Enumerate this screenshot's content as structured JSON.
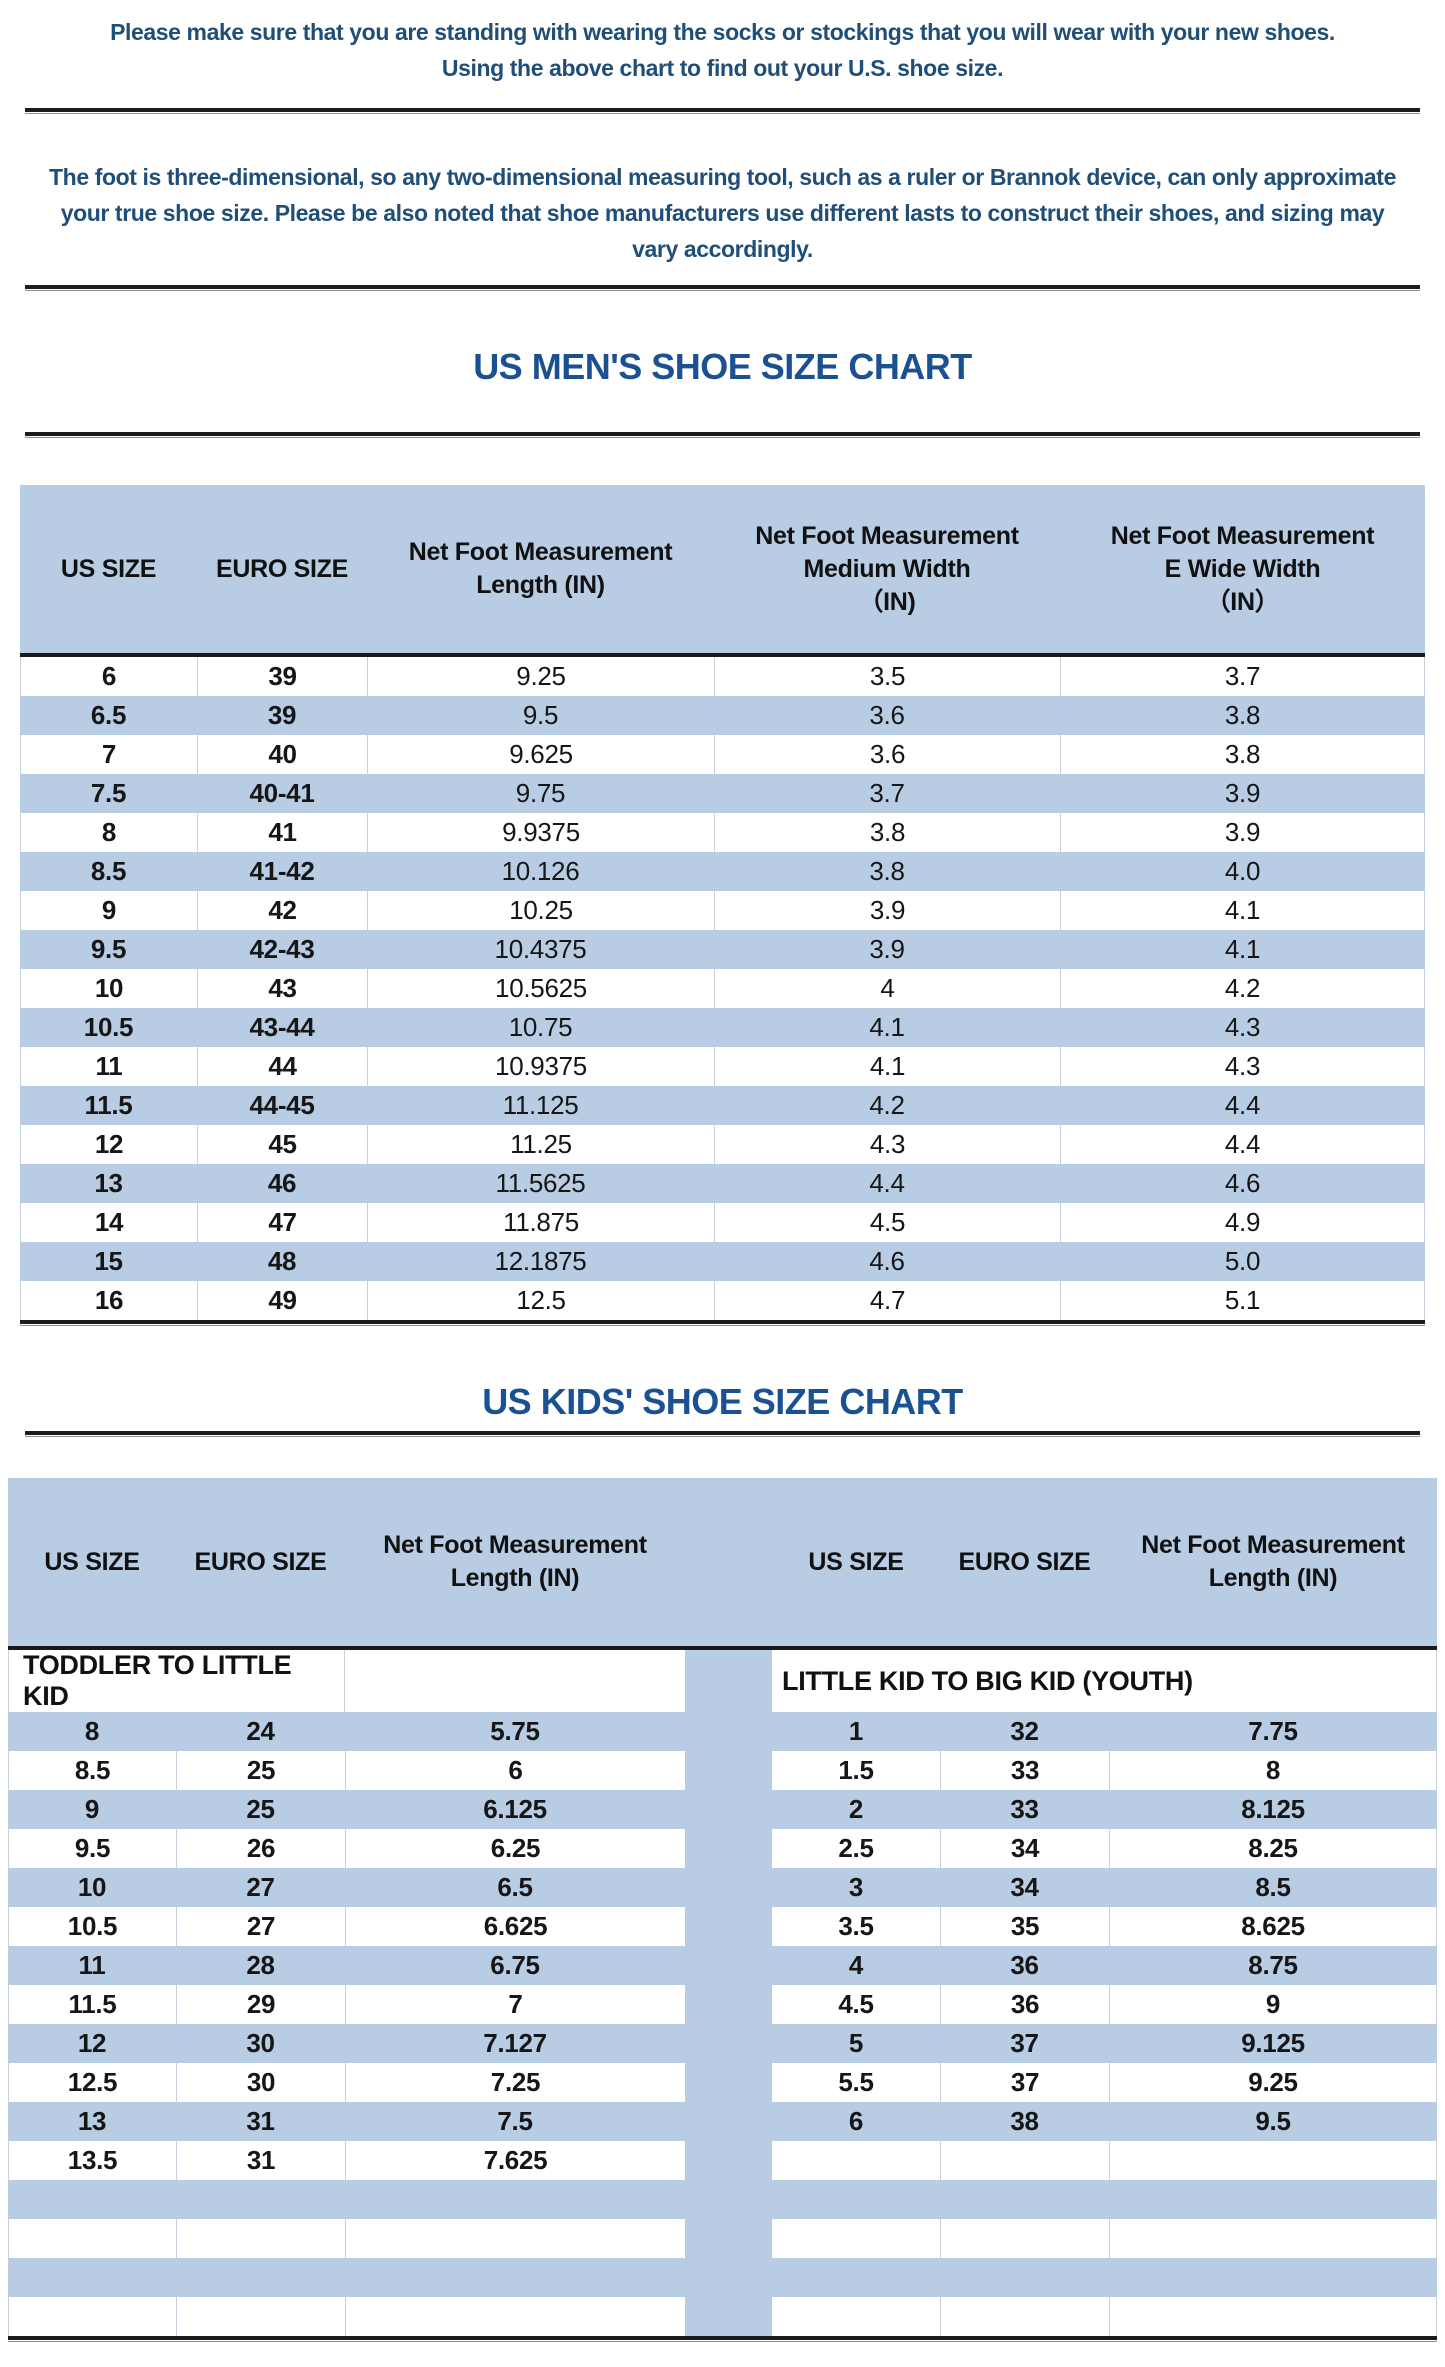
{
  "intro": {
    "para1": "Please make sure that you are standing with wearing the socks or stockings that you will wear with your new shoes.\nUsing the above chart to find out your U.S. shoe size.",
    "para2": "The foot is three-dimensional, so any two-dimensional measuring tool, such as a ruler or Brannok device, can only approximate your true shoe size. Please be also noted that shoe manufacturers use different lasts to construct their shoes, and sizing may vary accordingly."
  },
  "colors": {
    "row_stripe_blue": "#b8cce4",
    "paragraph_text_blue": "#1f4e79",
    "title_text_blue": "#1c5191",
    "table_text_black": "#161616",
    "thick_line_black": "#1c1c1c"
  },
  "mens_chart": {
    "title": "US MEN'S SHOE SIZE CHART",
    "headers": [
      "US SIZE",
      "EURO SIZE",
      "Net Foot Measurement\nLength (IN)",
      "Net Foot Measurement\nMedium Width\n（IN)",
      "Net Foot Measurement\nE Wide Width\n（IN）"
    ],
    "rows": [
      [
        "6",
        "39",
        "9.25",
        "3.5",
        "3.7"
      ],
      [
        "6.5",
        "39",
        "9.5",
        "3.6",
        "3.8"
      ],
      [
        "7",
        "40",
        "9.625",
        "3.6",
        "3.8"
      ],
      [
        "7.5",
        "40-41",
        "9.75",
        "3.7",
        "3.9"
      ],
      [
        "8",
        "41",
        "9.9375",
        "3.8",
        "3.9"
      ],
      [
        "8.5",
        "41-42",
        "10.126",
        "3.8",
        "4.0"
      ],
      [
        "9",
        "42",
        "10.25",
        "3.9",
        "4.1"
      ],
      [
        "9.5",
        "42-43",
        "10.4375",
        "3.9",
        "4.1"
      ],
      [
        "10",
        "43",
        "10.5625",
        "4",
        "4.2"
      ],
      [
        "10.5",
        "43-44",
        "10.75",
        "4.1",
        "4.3"
      ],
      [
        "11",
        "44",
        "10.9375",
        "4.1",
        "4.3"
      ],
      [
        "11.5",
        "44-45",
        "11.125",
        "4.2",
        "4.4"
      ],
      [
        "12",
        "45",
        "11.25",
        "4.3",
        "4.4"
      ],
      [
        "13",
        "46",
        "11.5625",
        "4.4",
        "4.6"
      ],
      [
        "14",
        "47",
        "11.875",
        "4.5",
        "4.9"
      ],
      [
        "15",
        "48",
        "12.1875",
        "4.6",
        "5.0"
      ],
      [
        "16",
        "49",
        "12.5",
        "4.7",
        "5.1"
      ]
    ]
  },
  "kids_chart": {
    "title": "US KIDS' SHOE SIZE CHART",
    "headers": [
      "US SIZE",
      "EURO SIZE",
      "Net Foot Measurement\nLength (IN)",
      "US SIZE",
      "EURO SIZE",
      "Net Foot Measurement\nLength (IN)"
    ],
    "left_section_label": "TODDLER TO LITTLE KID",
    "right_section_label": "LITTLE KID TO BIG KID (YOUTH)",
    "rows": [
      [
        "8",
        "24",
        "5.75",
        "1",
        "32",
        "7.75"
      ],
      [
        "8.5",
        "25",
        "6",
        "1.5",
        "33",
        "8"
      ],
      [
        "9",
        "25",
        "6.125",
        "2",
        "33",
        "8.125"
      ],
      [
        "9.5",
        "26",
        "6.25",
        "2.5",
        "34",
        "8.25"
      ],
      [
        "10",
        "27",
        "6.5",
        "3",
        "34",
        "8.5"
      ],
      [
        "10.5",
        "27",
        "6.625",
        "3.5",
        "35",
        "8.625"
      ],
      [
        "11",
        "28",
        "6.75",
        "4",
        "36",
        "8.75"
      ],
      [
        "11.5",
        "29",
        "7",
        "4.5",
        "36",
        "9"
      ],
      [
        "12",
        "30",
        "7.127",
        "5",
        "37",
        "9.125"
      ],
      [
        "12.5",
        "30",
        "7.25",
        "5.5",
        "37",
        "9.25"
      ],
      [
        "13",
        "31",
        "7.5",
        "6",
        "38",
        "9.5"
      ],
      [
        "13.5",
        "31",
        "7.625",
        "",
        "",
        ""
      ]
    ],
    "trailing_empty_rows": 4
  }
}
